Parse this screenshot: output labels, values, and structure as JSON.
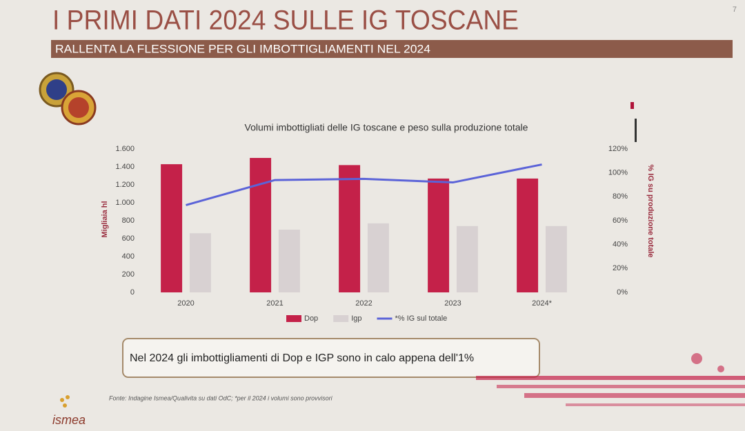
{
  "page_number": "7",
  "header": {
    "title": "I PRIMI DATI 2024 SULLE IG TOSCANE",
    "subtitle": "RALLENTA LA FLESSIONE PER GLI IMBOTTIGLIAMENTI NEL 2024"
  },
  "chart_data": {
    "type": "bar",
    "title": "Volumi imbottigliati delle IG toscane e peso sulla produzione totale",
    "y_label": "Migliaia hl",
    "y2_label": "% IG su produzione totale",
    "categories": [
      "2020",
      "2021",
      "2022",
      "2023",
      "2024*"
    ],
    "series": [
      {
        "name": "Dop",
        "color": "#c42149",
        "values": [
          1430,
          1500,
          1420,
          1270,
          1270
        ]
      },
      {
        "name": "Igp",
        "color": "#d8d1d2",
        "values": [
          660,
          700,
          770,
          740,
          740
        ]
      },
      {
        "name": "*% IG sul totale",
        "type": "line",
        "axis": "y2",
        "color": "#5b63d8",
        "values": [
          73,
          94,
          95,
          92,
          107
        ]
      }
    ],
    "ylim": [
      0,
      1600
    ],
    "yticks": [
      0,
      200,
      400,
      600,
      800,
      {
        "value": 1000,
        "label": "1.000"
      },
      {
        "value": 1200,
        "label": "1.200"
      },
      {
        "value": 1400,
        "label": "1.400"
      },
      {
        "value": 1600,
        "label": "1.600"
      }
    ],
    "y2lim": [
      0,
      120
    ],
    "y2ticks": [
      {
        "value": 0,
        "label": "0%"
      },
      {
        "value": 20,
        "label": "20%"
      },
      {
        "value": 40,
        "label": "40%"
      },
      {
        "value": 60,
        "label": "60%"
      },
      {
        "value": 80,
        "label": "80%"
      },
      {
        "value": 100,
        "label": "100%"
      },
      {
        "value": 120,
        "label": "120%"
      }
    ],
    "grid": false,
    "legend": "bottom"
  },
  "callout": "Nel 2024  gli imbottigliamenti di Dop e IGP sono in calo appena dell'1%",
  "source": "Fonte: Indagine Ismea/Qualivita su dati OdC; *per il 2024 i volumi sono provvisori",
  "logo": "ismea"
}
